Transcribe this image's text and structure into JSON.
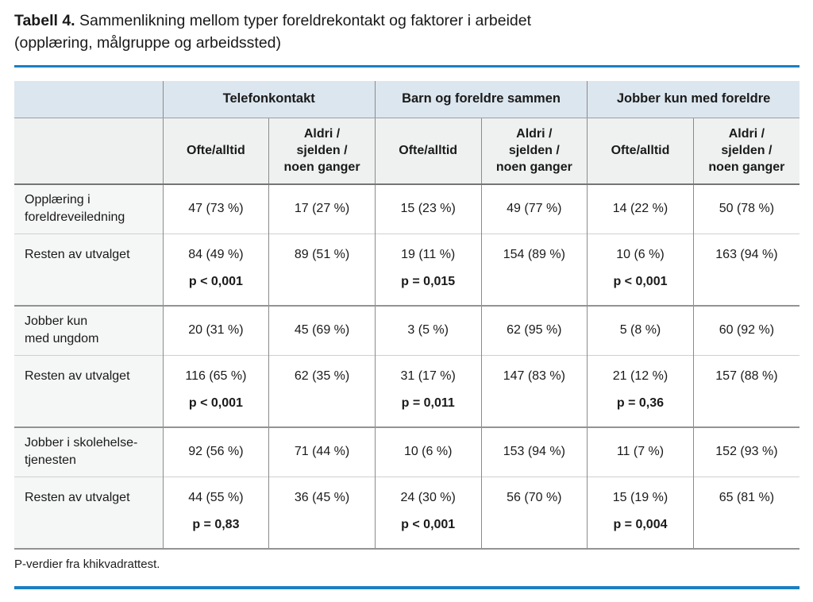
{
  "page": {
    "title_bold": "Tabell 4.",
    "title_rest": " Sammenlikning mellom typer foreldrekontakt og faktorer i arbeidet\n(opplæring, målgruppe og arbeidssted)",
    "footnote": "P-verdier fra khikvadrattest."
  },
  "colors": {
    "accent_blue": "#1b7fc2",
    "group_header_bg": "#dce6ee",
    "sub_header_bg": "#eff1f1",
    "label_col_bg": "#f5f6f6"
  },
  "table": {
    "group_headers": [
      "Telefonkontakt",
      "Barn og foreldre sammen",
      "Jobber kun med foreldre"
    ],
    "sub_headers": {
      "often": "Ofte/alltid",
      "rare": "Aldri /\nsjelden /\nnoen ganger"
    },
    "rows": [
      {
        "label": "Opplæring i\nforeldreveiledning",
        "cells": [
          {
            "value": "47 (73 %)"
          },
          {
            "value": "17 (27 %)"
          },
          {
            "value": "15 (23 %)"
          },
          {
            "value": "49 (77 %)"
          },
          {
            "value": "14 (22 %)"
          },
          {
            "value": "50 (78 %)"
          }
        ]
      },
      {
        "label": "Resten av utvalget",
        "cells": [
          {
            "value": "84 (49 %)",
            "p": "p < 0,001"
          },
          {
            "value": "89 (51 %)"
          },
          {
            "value": "19 (11 %)",
            "p": "p = 0,015"
          },
          {
            "value": "154 (89 %)"
          },
          {
            "value": "10 (6 %)",
            "p": "p < 0,001"
          },
          {
            "value": "163 (94 %)"
          }
        ]
      },
      {
        "label": "Jobber kun\nmed ungdom",
        "cells": [
          {
            "value": "20 (31 %)"
          },
          {
            "value": "45 (69 %)"
          },
          {
            "value": "3 (5 %)"
          },
          {
            "value": "62 (95 %)"
          },
          {
            "value": "5 (8 %)"
          },
          {
            "value": "60 (92 %)"
          }
        ]
      },
      {
        "label": "Resten av utvalget",
        "cells": [
          {
            "value": "116 (65 %)",
            "p": "p < 0,001"
          },
          {
            "value": "62 (35 %)"
          },
          {
            "value": "31 (17 %)",
            "p": "p = 0,011"
          },
          {
            "value": "147 (83 %)"
          },
          {
            "value": "21 (12 %)",
            "p": "p = 0,36"
          },
          {
            "value": "157 (88 %)"
          }
        ]
      },
      {
        "label": "Jobber i skolehelse-\ntjenesten",
        "cells": [
          {
            "value": "92 (56 %)"
          },
          {
            "value": "71 (44 %)"
          },
          {
            "value": "10 (6 %)"
          },
          {
            "value": "153 (94 %)"
          },
          {
            "value": "11 (7 %)"
          },
          {
            "value": "152 (93 %)"
          }
        ]
      },
      {
        "label": "Resten av utvalget",
        "cells": [
          {
            "value": "44 (55 %)",
            "p": "p = 0,83"
          },
          {
            "value": "36 (45 %)"
          },
          {
            "value": "24 (30 %)",
            "p": "p < 0,001"
          },
          {
            "value": "56 (70 %)"
          },
          {
            "value": "15 (19 %)",
            "p": "p = 0,004"
          },
          {
            "value": "65 (81 %)"
          }
        ]
      }
    ]
  }
}
